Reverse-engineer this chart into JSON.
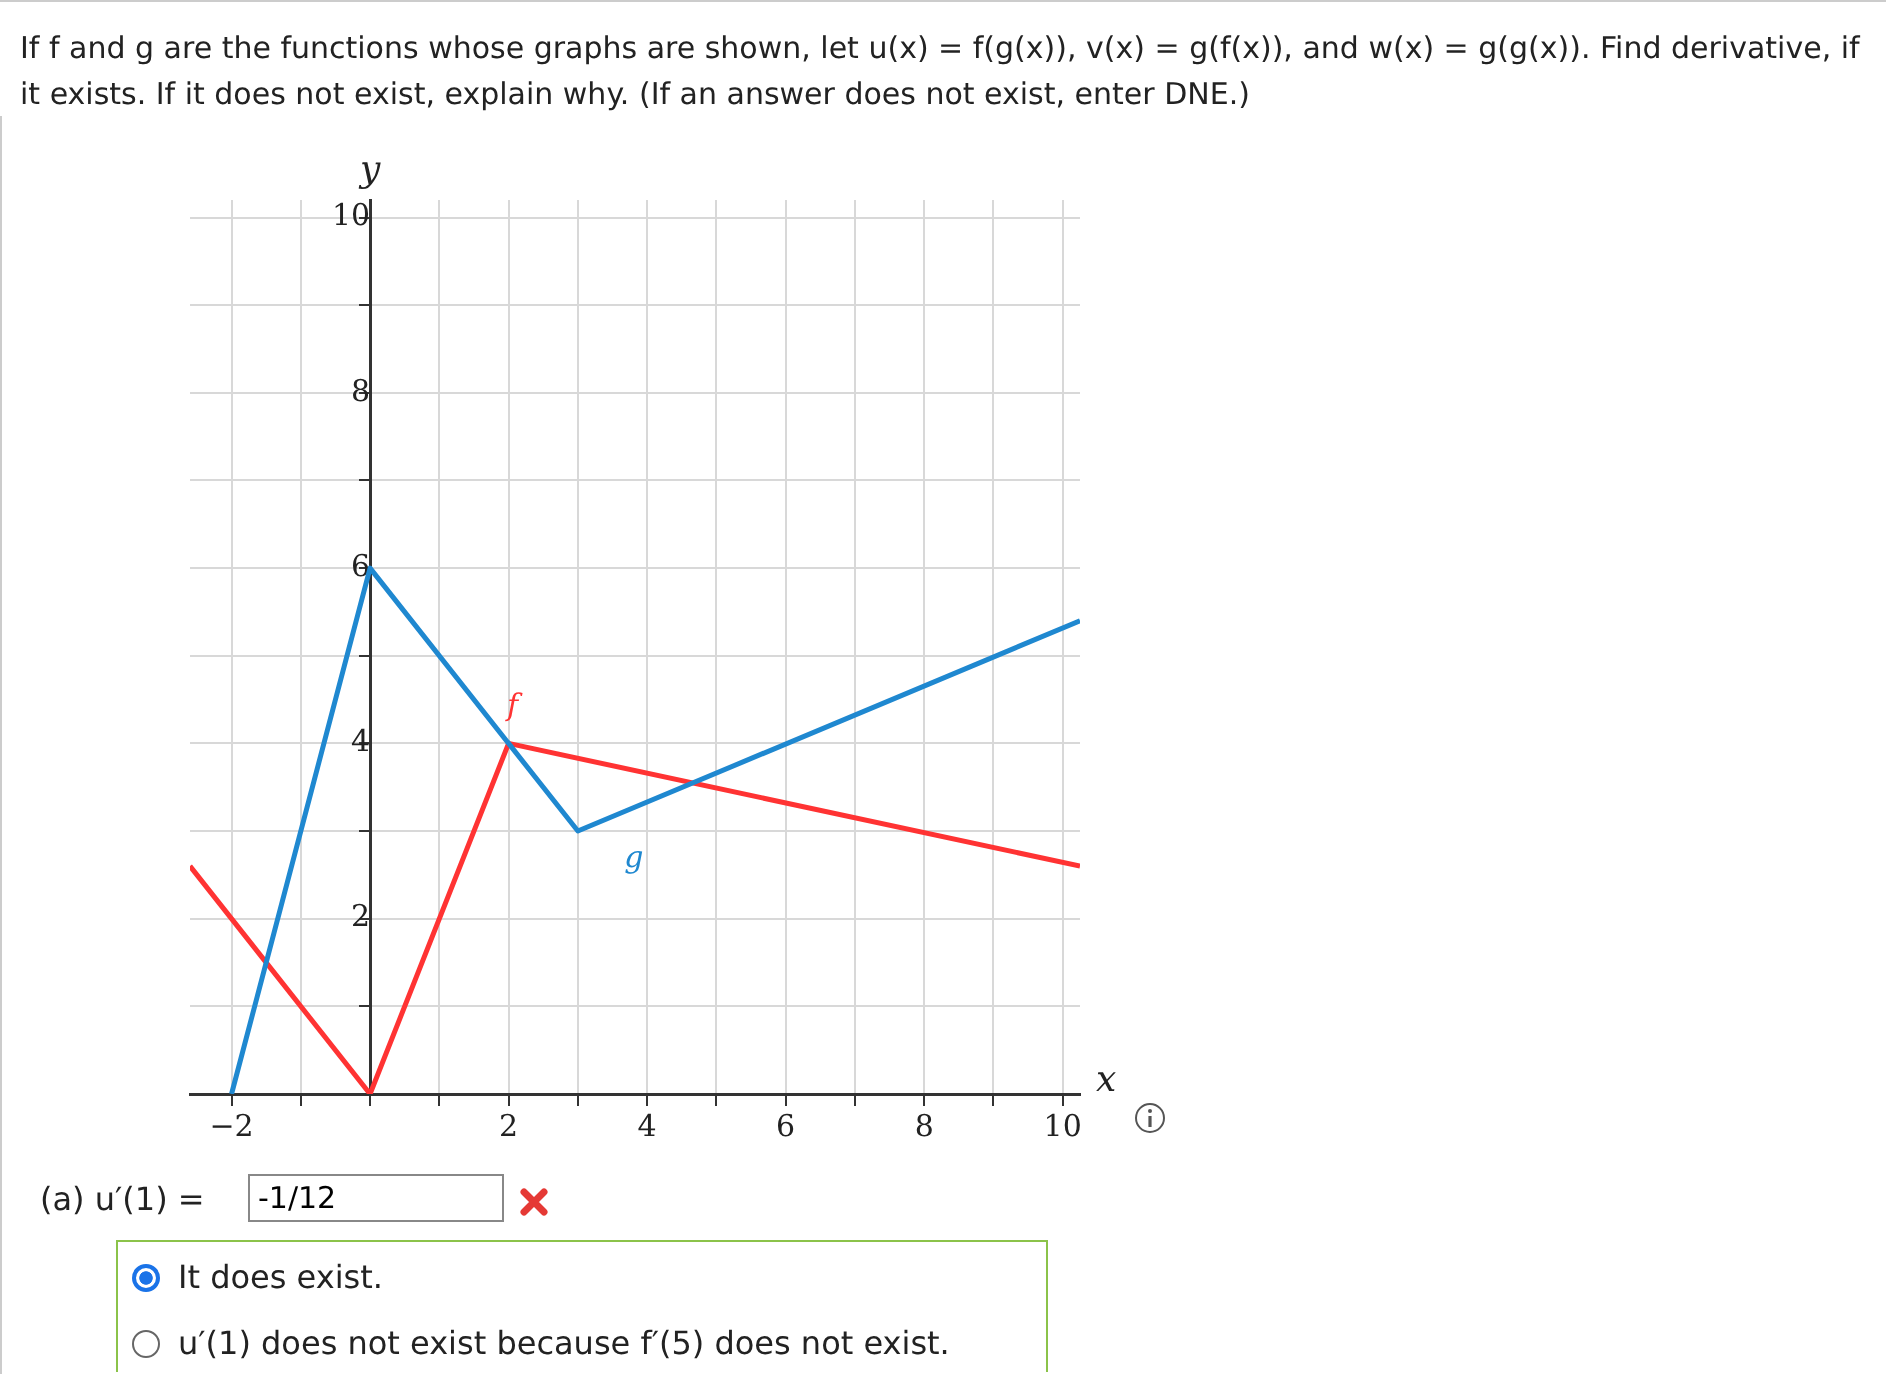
{
  "chart_data": {
    "type": "line",
    "title": "If f and g are the functions whose graphs are shown, let u(x) = f(g(x)), v(x) = g(f(x)), and w(x) = g(g(x)). Find derivative, if it exists. If it does not exist, explain why. (If an answer does not exist, enter DNE.)",
    "xlabel": "x",
    "ylabel": "y",
    "series": [
      {
        "name": "g",
        "color": "#1f88d0",
        "x": [
          -2,
          0,
          3,
          10.25
        ],
        "values": [
          0,
          6,
          3,
          5.4
        ]
      },
      {
        "name": "f",
        "color": "#ff3333",
        "x": [
          -2.6,
          0,
          2,
          10.25
        ],
        "values": [
          2.6,
          0,
          4,
          2.6
        ]
      }
    ],
    "annotations": [
      "(a) u′(1) =",
      "-1/12",
      "It does exist.",
      "u′(1) does not exist because f′(5) does not exist."
    ],
    "xlim": [
      -2.6,
      10.25
    ],
    "ylim": [
      0,
      10.2
    ],
    "xticks": [
      {
        "value": -2,
        "label": "−2"
      },
      {
        "value": -1,
        "label": null
      },
      {
        "value": 0,
        "label": null
      },
      {
        "value": 1,
        "label": null
      },
      2,
      {
        "value": 3,
        "label": null
      },
      4,
      {
        "value": 5,
        "label": null
      },
      6,
      {
        "value": 7,
        "label": null
      },
      8,
      {
        "value": 9,
        "label": null
      },
      10
    ],
    "yticks": [
      {
        "value": 0,
        "label": null
      },
      {
        "value": 1,
        "label": null
      },
      2,
      {
        "value": 3,
        "label": null
      },
      4,
      {
        "value": 5,
        "label": null
      },
      6,
      {
        "value": 7,
        "label": null
      },
      8,
      {
        "value": 9,
        "label": null
      },
      10
    ],
    "grid": true,
    "legend": false,
    "marker": "none",
    "line_style": "solid"
  }
}
